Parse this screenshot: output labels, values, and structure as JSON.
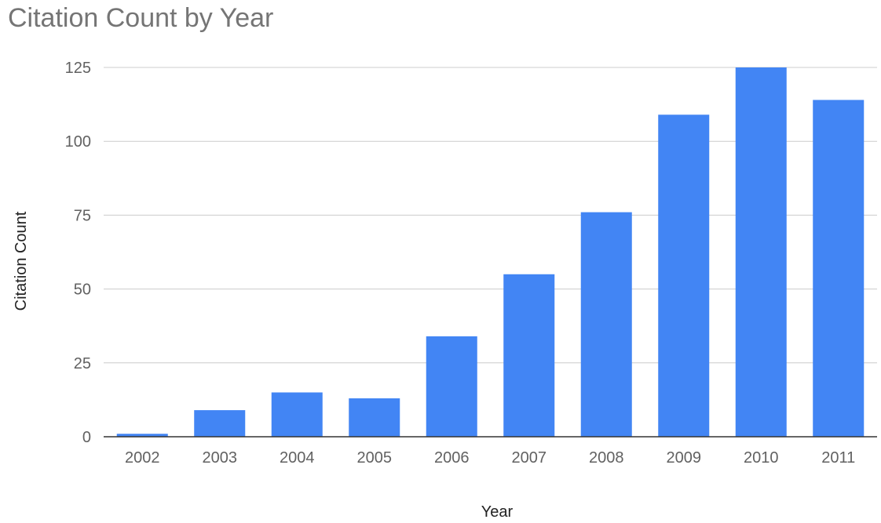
{
  "chart_data": {
    "type": "bar",
    "title": "Citation Count by Year",
    "xlabel": "Year",
    "ylabel": "Citation Count",
    "categories": [
      "2002",
      "2003",
      "2004",
      "2005",
      "2006",
      "2007",
      "2008",
      "2009",
      "2010",
      "2011"
    ],
    "series": [
      {
        "values": [
          1,
          9,
          15,
          13,
          34,
          55,
          76,
          109,
          125,
          114
        ]
      }
    ],
    "ylim": [
      0,
      125
    ],
    "yticks": [
      0,
      25,
      50,
      75,
      100,
      125
    ],
    "grid": true,
    "legend": "none",
    "colors": {
      "bar": "#4285F4",
      "title": "#757575",
      "axis_label": "#222222",
      "tick_label": "#616161",
      "gridline": "#cccccc",
      "baseline": "#333333"
    }
  }
}
